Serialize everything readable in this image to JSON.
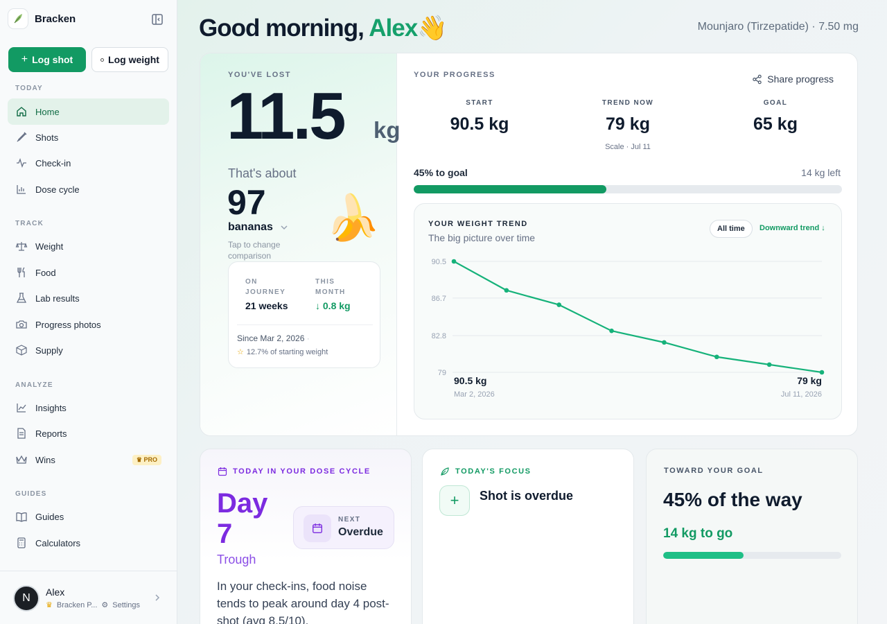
{
  "brand": {
    "name": "Bracken"
  },
  "actions": {
    "log_shot": "Log shot",
    "log_weight": "Log weight"
  },
  "sidebar": {
    "sections": {
      "today": "TODAY",
      "track": "TRACK",
      "analyze": "ANALYZE",
      "guides": "GUIDES"
    },
    "items": {
      "home": "Home",
      "shots": "Shots",
      "checkin": "Check-in",
      "dose_cycle": "Dose cycle",
      "weight": "Weight",
      "food": "Food",
      "lab_results": "Lab results",
      "progress_photos": "Progress photos",
      "supply": "Supply",
      "insights": "Insights",
      "reports": "Reports",
      "wins": "Wins",
      "wins_badge": "PRO",
      "guides": "Guides",
      "calculators": "Calculators"
    },
    "user": {
      "initial": "N",
      "name": "Alex",
      "plan": "Bracken P...",
      "settings": "Settings"
    }
  },
  "header": {
    "greeting": "Good morning,",
    "name": "Alex",
    "wave": "👋",
    "medication": "Mounjaro (Tirzepatide) · 7.50 mg"
  },
  "hero": {
    "lost_label": "YOU'VE LOST",
    "lost_value": "11.5",
    "lost_unit": "kg",
    "about": "That's about",
    "count": "97",
    "item": "bananas",
    "tap": "Tap to change comparison",
    "emoji": "🍌",
    "on_journey_label": "ON JOURNEY",
    "on_journey_value": "21 weeks",
    "this_month_label": "THIS MONTH",
    "this_month_value": "↓ 0.8 kg",
    "since": "Since Mar 2, 2026",
    "since_dot": "·",
    "pct_start": "12.7% of starting weight"
  },
  "progress": {
    "label": "YOUR PROGRESS",
    "share": "Share progress",
    "start_label": "START",
    "start_value": "90.5 kg",
    "trend_label": "TREND NOW",
    "trend_value": "79 kg",
    "trend_sub": "Scale · Jul 11",
    "goal_label": "GOAL",
    "goal_value": "65 kg",
    "to_goal": "45% to goal",
    "left": "14 kg left",
    "fraction": 0.45
  },
  "trend_card": {
    "title": "YOUR WEIGHT TREND",
    "subtitle": "The big picture over time",
    "range": "All time",
    "direction": "Downward trend ↓",
    "start_value": "90.5 kg",
    "start_date": "Mar 2, 2026",
    "end_value": "79 kg",
    "end_date": "Jul 11, 2026"
  },
  "chart_data": {
    "type": "line",
    "y_ticks": [
      "90.5",
      "86.7",
      "82.8",
      "79"
    ],
    "ylim": [
      79,
      90.5
    ],
    "series": [
      {
        "values": [
          90.5,
          87.5,
          86.0,
          83.3,
          82.1,
          80.6,
          79.8,
          79.0
        ]
      }
    ],
    "color": "#16b27a",
    "grid": true
  },
  "dose_card": {
    "title": "TODAY IN YOUR DOSE CYCLE",
    "day": "Day 7",
    "phase": "Trough",
    "next_label": "NEXT",
    "next_value": "Overdue",
    "text": "In your check-ins, food noise tends to peak around day 4 post-shot (avg 8.5/10)."
  },
  "focus_card": {
    "title": "TODAY'S FOCUS",
    "plus": "+",
    "item": "Shot is overdue"
  },
  "goal_card": {
    "title": "TOWARD YOUR GOAL",
    "headline": "45% of the way",
    "remaining": "14 kg to go",
    "fraction": 0.45
  },
  "colors": {
    "accent": "#129a63",
    "purple": "#7c2be0"
  }
}
